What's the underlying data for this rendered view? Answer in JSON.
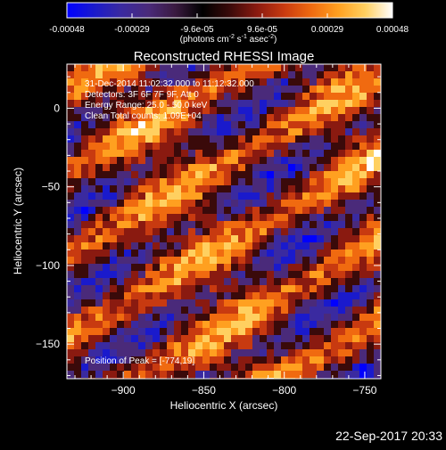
{
  "colorbar": {
    "tick_labels": [
      "-0.00048",
      "-0.00029",
      "-9.6e-05",
      "9.6e-05",
      "0.00029",
      "0.00048"
    ],
    "units_prefix": "(photons cm",
    "units_sup1": "-2",
    "units_mid1": " s",
    "units_sup2": "-1",
    "units_mid2": " asec",
    "units_sup3": "-2",
    "units_suffix": ")",
    "colors": [
      "#0000ff",
      "#1a1acc",
      "#3a2aa0",
      "#4a2a7a",
      "#3a1a40",
      "#000000",
      "#3a0a0a",
      "#8a1a10",
      "#c83a10",
      "#f06a10",
      "#ffa020",
      "#ffd060",
      "#ffffff"
    ]
  },
  "plot": {
    "title": "Reconstructed RHESSI Image",
    "info_lines": [
      "31-Dec-2014 11:02:32.000 to 11:12:32.000",
      "Detectors: 3F 6F 7F 9F, Att 0",
      "Energy Range: 25.0 - 50.0 keV",
      "Clean    Total counts: 1.09E+04"
    ],
    "peak_label": "Position of Peak = [-774,19]",
    "xlabel": "Heliocentric X (arcsec)",
    "ylabel": "Heliocentric Y (arcsec)",
    "x_range": [
      -935,
      -740
    ],
    "y_range": [
      -172,
      28
    ],
    "x_ticks": [
      {
        "value": -900,
        "label": "−900"
      },
      {
        "value": -850,
        "label": "−850"
      },
      {
        "value": -800,
        "label": "−800"
      },
      {
        "value": -750,
        "label": "−750"
      }
    ],
    "y_ticks": [
      {
        "value": 0,
        "label": "0"
      },
      {
        "value": -50,
        "label": "−50"
      },
      {
        "value": -100,
        "label": "−100"
      },
      {
        "value": -150,
        "label": "−150"
      }
    ]
  },
  "footer": {
    "timestamp": "22-Sep-2017 20:33"
  }
}
